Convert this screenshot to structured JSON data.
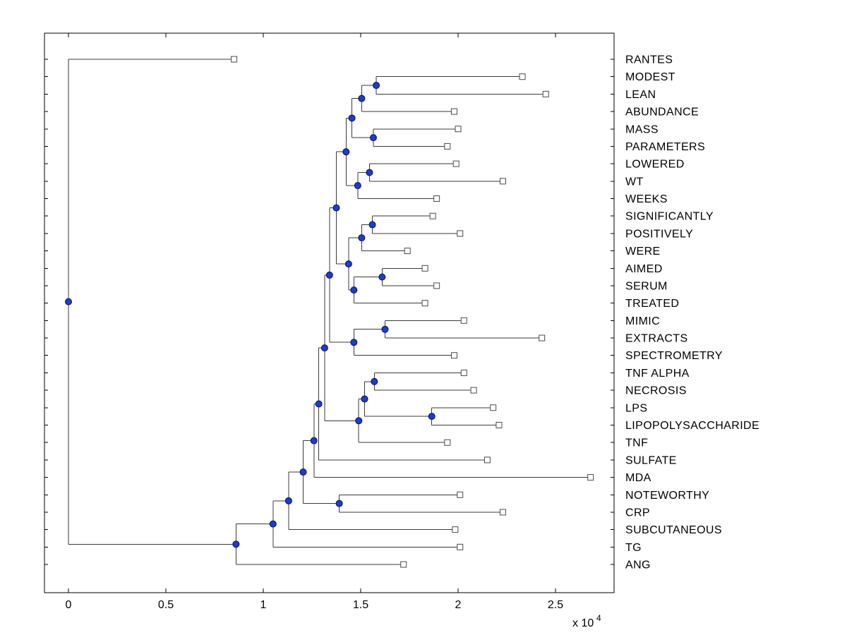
{
  "figure": {
    "background": "#ffffff",
    "axis_color": "#000000",
    "branch_line_color": "#3a3a3a",
    "branch_node_fill": "#1f3ccc",
    "branch_node_edge": "#000c66",
    "leaf_marker_fill": "#ffffff",
    "leaf_marker_edge": "#4a4a4a"
  },
  "chart_data": {
    "type": "dendrogram",
    "orientation": "root-left-leaves-right",
    "title": "",
    "xlabel": "",
    "ylabel": "",
    "grid": false,
    "legend": null,
    "xlim": [
      -1200,
      28000
    ],
    "x_ticks": [
      0,
      5000,
      10000,
      15000,
      20000,
      25000
    ],
    "x_tick_labels": [
      "0",
      "0.5",
      "1",
      "1.5",
      "2",
      "2.5"
    ],
    "x_multiplier_base": "x 10",
    "x_multiplier_exponent": "4",
    "leaves": [
      {
        "label": "RANTES",
        "x": 8500
      },
      {
        "label": "MODEST",
        "x": 23300
      },
      {
        "label": "LEAN",
        "x": 24500
      },
      {
        "label": "ABUNDANCE",
        "x": 19800
      },
      {
        "label": "MASS",
        "x": 20000
      },
      {
        "label": "PARAMETERS",
        "x": 19450
      },
      {
        "label": "LOWERED",
        "x": 19900
      },
      {
        "label": "WT",
        "x": 22300
      },
      {
        "label": "WEEKS",
        "x": 18900
      },
      {
        "label": "SIGNIFICANTLY",
        "x": 18700
      },
      {
        "label": "POSITIVELY",
        "x": 20100
      },
      {
        "label": "WERE",
        "x": 17400
      },
      {
        "label": "AIMED",
        "x": 18300
      },
      {
        "label": "SERUM",
        "x": 18900
      },
      {
        "label": "TREATED",
        "x": 18300
      },
      {
        "label": "MIMIC",
        "x": 20300
      },
      {
        "label": "EXTRACTS",
        "x": 24300
      },
      {
        "label": "SPECTROMETRY",
        "x": 19800
      },
      {
        "label": "TNF ALPHA",
        "x": 20300
      },
      {
        "label": "NECROSIS",
        "x": 20800
      },
      {
        "label": "LPS",
        "x": 21800
      },
      {
        "label": "LIPOPOLYSACCHARIDE",
        "x": 22100
      },
      {
        "label": "TNF",
        "x": 19450
      },
      {
        "label": "SULFATE",
        "x": 21500
      },
      {
        "label": "MDA",
        "x": 26800
      },
      {
        "label": "NOTEWORTHY",
        "x": 20100
      },
      {
        "label": "CRP",
        "x": 22300
      },
      {
        "label": "SUBCUTANEOUS",
        "x": 19850
      },
      {
        "label": "TG",
        "x": 20100
      },
      {
        "label": "ANG",
        "x": 17200
      }
    ],
    "nodes": [
      {
        "id": "modest-lean",
        "x": 15800,
        "children": [
          "MODEST",
          "LEAN"
        ]
      },
      {
        "id": "abundance-grp",
        "x": 15050,
        "children": [
          "modest-lean",
          "ABUNDANCE"
        ]
      },
      {
        "id": "mass-parameters",
        "x": 15650,
        "children": [
          "MASS",
          "PARAMETERS"
        ]
      },
      {
        "id": "top-a",
        "x": 14550,
        "children": [
          "abundance-grp",
          "mass-parameters"
        ]
      },
      {
        "id": "lowered-wt",
        "x": 15450,
        "children": [
          "LOWERED",
          "WT"
        ]
      },
      {
        "id": "weeks-grp",
        "x": 14850,
        "children": [
          "lowered-wt",
          "WEEKS"
        ]
      },
      {
        "id": "top-b",
        "x": 14250,
        "children": [
          "top-a",
          "weeks-grp"
        ]
      },
      {
        "id": "sig-pos",
        "x": 15600,
        "children": [
          "SIGNIFICANTLY",
          "POSITIVELY"
        ]
      },
      {
        "id": "were-grp",
        "x": 15050,
        "children": [
          "sig-pos",
          "WERE"
        ]
      },
      {
        "id": "aimed-serum",
        "x": 16100,
        "children": [
          "AIMED",
          "SERUM"
        ]
      },
      {
        "id": "treated-grp",
        "x": 14650,
        "children": [
          "aimed-serum",
          "TREATED"
        ]
      },
      {
        "id": "mid-a",
        "x": 14380,
        "children": [
          "were-grp",
          "treated-grp"
        ]
      },
      {
        "id": "upper",
        "x": 13750,
        "children": [
          "top-b",
          "mid-a"
        ]
      },
      {
        "id": "mimic-extracts",
        "x": 16250,
        "children": [
          "MIMIC",
          "EXTRACTS"
        ]
      },
      {
        "id": "spectrometry-grp",
        "x": 14650,
        "children": [
          "mimic-extracts",
          "SPECTROMETRY"
        ]
      },
      {
        "id": "upper2",
        "x": 13400,
        "children": [
          "upper",
          "spectrometry-grp"
        ]
      },
      {
        "id": "tnfa-necrosis",
        "x": 15700,
        "children": [
          "TNF ALPHA",
          "NECROSIS"
        ]
      },
      {
        "id": "lps-lipo",
        "x": 18650,
        "children": [
          "LPS",
          "LIPOPOLYSACCHARIDE"
        ]
      },
      {
        "id": "tnf-grp-a",
        "x": 15200,
        "children": [
          "tnfa-necrosis",
          "lps-lipo"
        ]
      },
      {
        "id": "tnf-grp-b",
        "x": 14900,
        "children": [
          "tnf-grp-a",
          "TNF"
        ]
      },
      {
        "id": "mid-b",
        "x": 13150,
        "children": [
          "upper2",
          "tnf-grp-b"
        ]
      },
      {
        "id": "sulfate-grp",
        "x": 12850,
        "children": [
          "mid-b",
          "SULFATE"
        ]
      },
      {
        "id": "mda-grp",
        "x": 12600,
        "children": [
          "sulfate-grp",
          "MDA"
        ]
      },
      {
        "id": "noteworthy-crp",
        "x": 13900,
        "children": [
          "NOTEWORTHY",
          "CRP"
        ]
      },
      {
        "id": "lower-a",
        "x": 12050,
        "children": [
          "mda-grp",
          "noteworthy-crp"
        ]
      },
      {
        "id": "lower-b",
        "x": 11300,
        "children": [
          "lower-a",
          "SUBCUTANEOUS"
        ]
      },
      {
        "id": "lower-c",
        "x": 10500,
        "children": [
          "lower-b",
          "TG"
        ]
      },
      {
        "id": "lower-d",
        "x": 8600,
        "children": [
          "lower-c",
          "ANG"
        ]
      },
      {
        "id": "root",
        "x": 0,
        "children": [
          "RANTES",
          "lower-d"
        ]
      }
    ]
  }
}
